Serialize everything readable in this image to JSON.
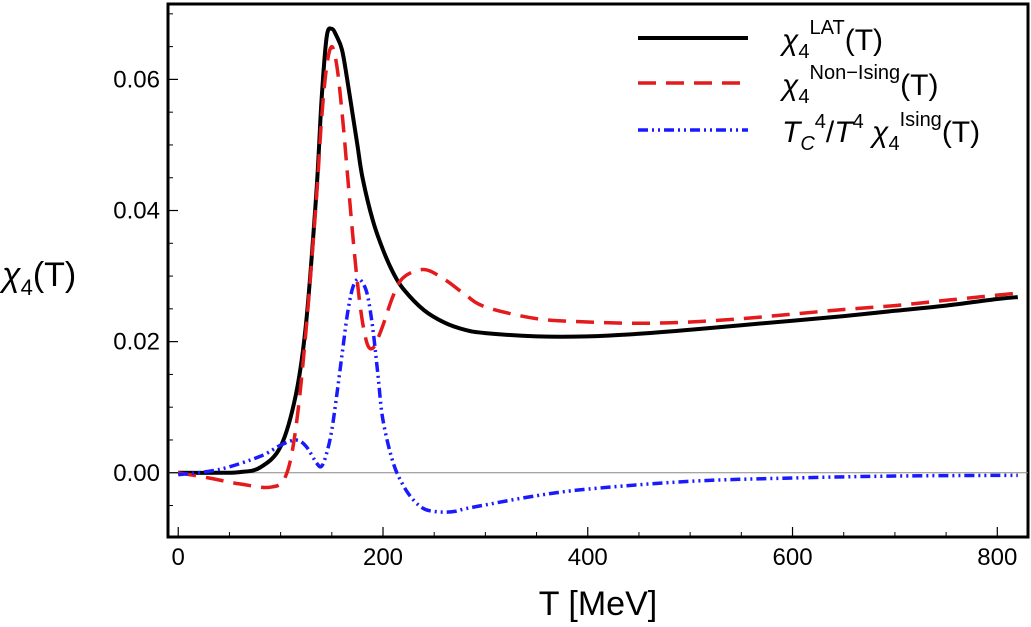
{
  "chart_data": {
    "type": "line",
    "title": "",
    "xlabel": "T [MeV]",
    "ylabel": {
      "base": "χ",
      "sub": "4",
      "suffix": "(T)"
    },
    "xlim": [
      -10,
      830
    ],
    "ylim": [
      -0.0098,
      0.0715
    ],
    "xticks": [
      0,
      200,
      400,
      600,
      800
    ],
    "xtick_labels": [
      "0",
      "200",
      "400",
      "600",
      "800"
    ],
    "yticks": [
      0.0,
      0.02,
      0.04,
      0.06
    ],
    "ytick_labels": [
      "0.00",
      "0.02",
      "0.04",
      "0.06"
    ],
    "grid": false,
    "legend_position": "top-right",
    "series": [
      {
        "name": "χ4^LAT(T)",
        "legend": {
          "pre": "",
          "base": "χ",
          "sub": "4",
          "sup": "LAT",
          "post": "(T)"
        },
        "color": "#000000",
        "style": "solid",
        "x": [
          0,
          40,
          60,
          80,
          100,
          115,
          125,
          135,
          140,
          145,
          150,
          155,
          160,
          165,
          170,
          175,
          180,
          190,
          200,
          210,
          220,
          240,
          260,
          280,
          300,
          350,
          400,
          450,
          500,
          550,
          600,
          650,
          700,
          750,
          800,
          820
        ],
        "y": [
          0.0,
          0.0,
          0.0001,
          0.0008,
          0.004,
          0.012,
          0.023,
          0.043,
          0.057,
          0.0665,
          0.0677,
          0.0665,
          0.0645,
          0.06,
          0.055,
          0.05,
          0.045,
          0.0385,
          0.034,
          0.0305,
          0.028,
          0.0248,
          0.0229,
          0.0218,
          0.0213,
          0.0208,
          0.0208,
          0.0212,
          0.0218,
          0.0225,
          0.0232,
          0.0239,
          0.0247,
          0.0255,
          0.0265,
          0.0268
        ]
      },
      {
        "name": "χ4^Non-Ising(T)",
        "legend": {
          "pre": "",
          "base": "χ",
          "sub": "4",
          "sup": "Non−Ising",
          "post": "(T)"
        },
        "color": "#e41a1c",
        "style": "dashed",
        "x": [
          0,
          30,
          60,
          90,
          105,
          115,
          125,
          135,
          140,
          145,
          150,
          155,
          160,
          165,
          170,
          175,
          180,
          185,
          190,
          195,
          200,
          210,
          220,
          240,
          260,
          280,
          300,
          350,
          400,
          450,
          500,
          550,
          600,
          650,
          700,
          750,
          800,
          820
        ],
        "y": [
          0.0,
          -0.0008,
          -0.0017,
          -0.0022,
          -0.0005,
          0.007,
          0.022,
          0.042,
          0.054,
          0.062,
          0.065,
          0.062,
          0.055,
          0.046,
          0.037,
          0.029,
          0.023,
          0.0195,
          0.019,
          0.0205,
          0.0225,
          0.027,
          0.0298,
          0.031,
          0.0295,
          0.0272,
          0.0253,
          0.0235,
          0.023,
          0.0228,
          0.023,
          0.0235,
          0.0242,
          0.0249,
          0.0255,
          0.0263,
          0.0271,
          0.0274
        ]
      },
      {
        "name": "T_C^4/T^4 χ4^Ising(T)",
        "legend": {
          "pre": "T_C^4/T^4 ",
          "base": "χ",
          "sub": "4",
          "sup": "Ising",
          "post": "(T)"
        },
        "color": "#1a1aff",
        "style": "dashdot",
        "x": [
          0,
          40,
          80,
          100,
          115,
          125,
          135,
          140,
          145,
          150,
          155,
          160,
          165,
          170,
          175,
          180,
          185,
          190,
          195,
          200,
          210,
          220,
          230,
          240,
          250,
          260,
          270,
          280,
          300,
          350,
          400,
          500,
          600,
          700,
          800,
          820
        ],
        "y": [
          -0.0003,
          0.0005,
          0.0025,
          0.0042,
          0.005,
          0.004,
          0.0015,
          0.001,
          0.003,
          0.0065,
          0.012,
          0.018,
          0.024,
          0.028,
          0.0295,
          0.029,
          0.027,
          0.022,
          0.015,
          0.008,
          0.0015,
          -0.002,
          -0.0042,
          -0.0055,
          -0.0059,
          -0.006,
          -0.0059,
          -0.0055,
          -0.0049,
          -0.0035,
          -0.0025,
          -0.0013,
          -0.0008,
          -0.0005,
          -0.0004,
          -0.0004
        ]
      }
    ]
  }
}
